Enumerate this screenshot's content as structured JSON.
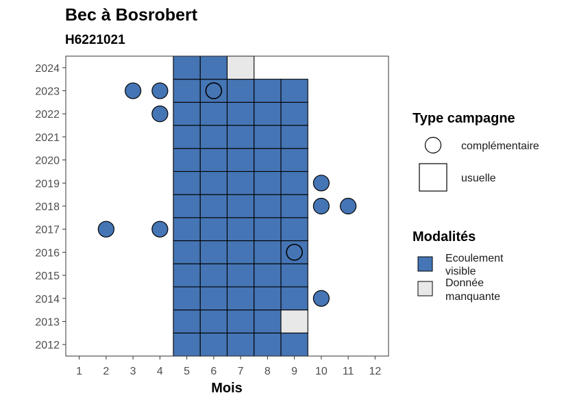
{
  "chart_data": {
    "type": "heatmap",
    "title": "Bec à Bosrobert",
    "subtitle": "H6221021",
    "xlabel": "Mois",
    "ylabel": "",
    "x_ticks": [
      1,
      2,
      3,
      4,
      5,
      6,
      7,
      8,
      9,
      10,
      11,
      12
    ],
    "y_ticks": [
      2012,
      2013,
      2014,
      2015,
      2016,
      2017,
      2018,
      2019,
      2020,
      2021,
      2022,
      2023,
      2024
    ],
    "xlim": [
      0.5,
      12.5
    ],
    "ylim": [
      2011.5,
      2024.5
    ],
    "grid": false,
    "colors": {
      "ecoulement_visible": "#4575b4",
      "donnee_manquante": "#e8e8e8"
    },
    "modalite_keys": [
      "ecoulement_visible",
      "donnee_manquante"
    ],
    "usuelle_tiles": [
      {
        "year": 2012,
        "months": [
          5,
          6,
          7,
          8,
          9
        ],
        "modalite": [
          "ecoulement_visible",
          "ecoulement_visible",
          "ecoulement_visible",
          "ecoulement_visible",
          "ecoulement_visible"
        ]
      },
      {
        "year": 2013,
        "months": [
          5,
          6,
          7,
          8,
          9
        ],
        "modalite": [
          "ecoulement_visible",
          "ecoulement_visible",
          "ecoulement_visible",
          "ecoulement_visible",
          "donnee_manquante"
        ]
      },
      {
        "year": 2014,
        "months": [
          5,
          6,
          7,
          8,
          9
        ],
        "modalite": [
          "ecoulement_visible",
          "ecoulement_visible",
          "ecoulement_visible",
          "ecoulement_visible",
          "ecoulement_visible"
        ]
      },
      {
        "year": 2015,
        "months": [
          5,
          6,
          7,
          8,
          9
        ],
        "modalite": [
          "ecoulement_visible",
          "ecoulement_visible",
          "ecoulement_visible",
          "ecoulement_visible",
          "ecoulement_visible"
        ]
      },
      {
        "year": 2016,
        "months": [
          5,
          6,
          7,
          8,
          9
        ],
        "modalite": [
          "ecoulement_visible",
          "ecoulement_visible",
          "ecoulement_visible",
          "ecoulement_visible",
          "ecoulement_visible"
        ]
      },
      {
        "year": 2017,
        "months": [
          5,
          6,
          7,
          8,
          9
        ],
        "modalite": [
          "ecoulement_visible",
          "ecoulement_visible",
          "ecoulement_visible",
          "ecoulement_visible",
          "ecoulement_visible"
        ]
      },
      {
        "year": 2018,
        "months": [
          5,
          6,
          7,
          8,
          9
        ],
        "modalite": [
          "ecoulement_visible",
          "ecoulement_visible",
          "ecoulement_visible",
          "ecoulement_visible",
          "ecoulement_visible"
        ]
      },
      {
        "year": 2019,
        "months": [
          5,
          6,
          7,
          8,
          9
        ],
        "modalite": [
          "ecoulement_visible",
          "ecoulement_visible",
          "ecoulement_visible",
          "ecoulement_visible",
          "ecoulement_visible"
        ]
      },
      {
        "year": 2020,
        "months": [
          5,
          6,
          7,
          8,
          9
        ],
        "modalite": [
          "ecoulement_visible",
          "ecoulement_visible",
          "ecoulement_visible",
          "ecoulement_visible",
          "ecoulement_visible"
        ]
      },
      {
        "year": 2021,
        "months": [
          5,
          6,
          7,
          8,
          9
        ],
        "modalite": [
          "ecoulement_visible",
          "ecoulement_visible",
          "ecoulement_visible",
          "ecoulement_visible",
          "ecoulement_visible"
        ]
      },
      {
        "year": 2022,
        "months": [
          5,
          6,
          7,
          8,
          9
        ],
        "modalite": [
          "ecoulement_visible",
          "ecoulement_visible",
          "ecoulement_visible",
          "ecoulement_visible",
          "ecoulement_visible"
        ]
      },
      {
        "year": 2023,
        "months": [
          5,
          6,
          7,
          8,
          9
        ],
        "modalite": [
          "ecoulement_visible",
          "ecoulement_visible",
          "ecoulement_visible",
          "ecoulement_visible",
          "ecoulement_visible"
        ]
      },
      {
        "year": 2024,
        "months": [
          5,
          6,
          7
        ],
        "modalite": [
          "ecoulement_visible",
          "ecoulement_visible",
          "donnee_manquante"
        ]
      }
    ],
    "complementaire_points": [
      {
        "year": 2023,
        "month": 3,
        "modalite": "ecoulement_visible"
      },
      {
        "year": 2023,
        "month": 4,
        "modalite": "ecoulement_visible"
      },
      {
        "year": 2023,
        "month": 6,
        "modalite": "ecoulement_visible"
      },
      {
        "year": 2022,
        "month": 4,
        "modalite": "ecoulement_visible"
      },
      {
        "year": 2019,
        "month": 10,
        "modalite": "ecoulement_visible"
      },
      {
        "year": 2018,
        "month": 10,
        "modalite": "ecoulement_visible"
      },
      {
        "year": 2018,
        "month": 11,
        "modalite": "ecoulement_visible"
      },
      {
        "year": 2017,
        "month": 2,
        "modalite": "ecoulement_visible"
      },
      {
        "year": 2017,
        "month": 4,
        "modalite": "ecoulement_visible"
      },
      {
        "year": 2016,
        "month": 9,
        "modalite": "ecoulement_visible"
      },
      {
        "year": 2014,
        "month": 10,
        "modalite": "ecoulement_visible"
      }
    ],
    "legend": {
      "position": "right",
      "type_campagne": {
        "title": "Type campagne",
        "entries": [
          {
            "key": "complementaire",
            "label": "complémentaire",
            "shape": "circle"
          },
          {
            "key": "usuelle",
            "label": "usuelle",
            "shape": "square"
          }
        ]
      },
      "modalites": {
        "title": "Modalités",
        "entries": [
          {
            "key": "ecoulement_visible",
            "label_lines": [
              "Ecoulement",
              "visible"
            ]
          },
          {
            "key": "donnee_manquante",
            "label_lines": [
              "Donnée",
              "manquante"
            ]
          }
        ]
      }
    }
  }
}
